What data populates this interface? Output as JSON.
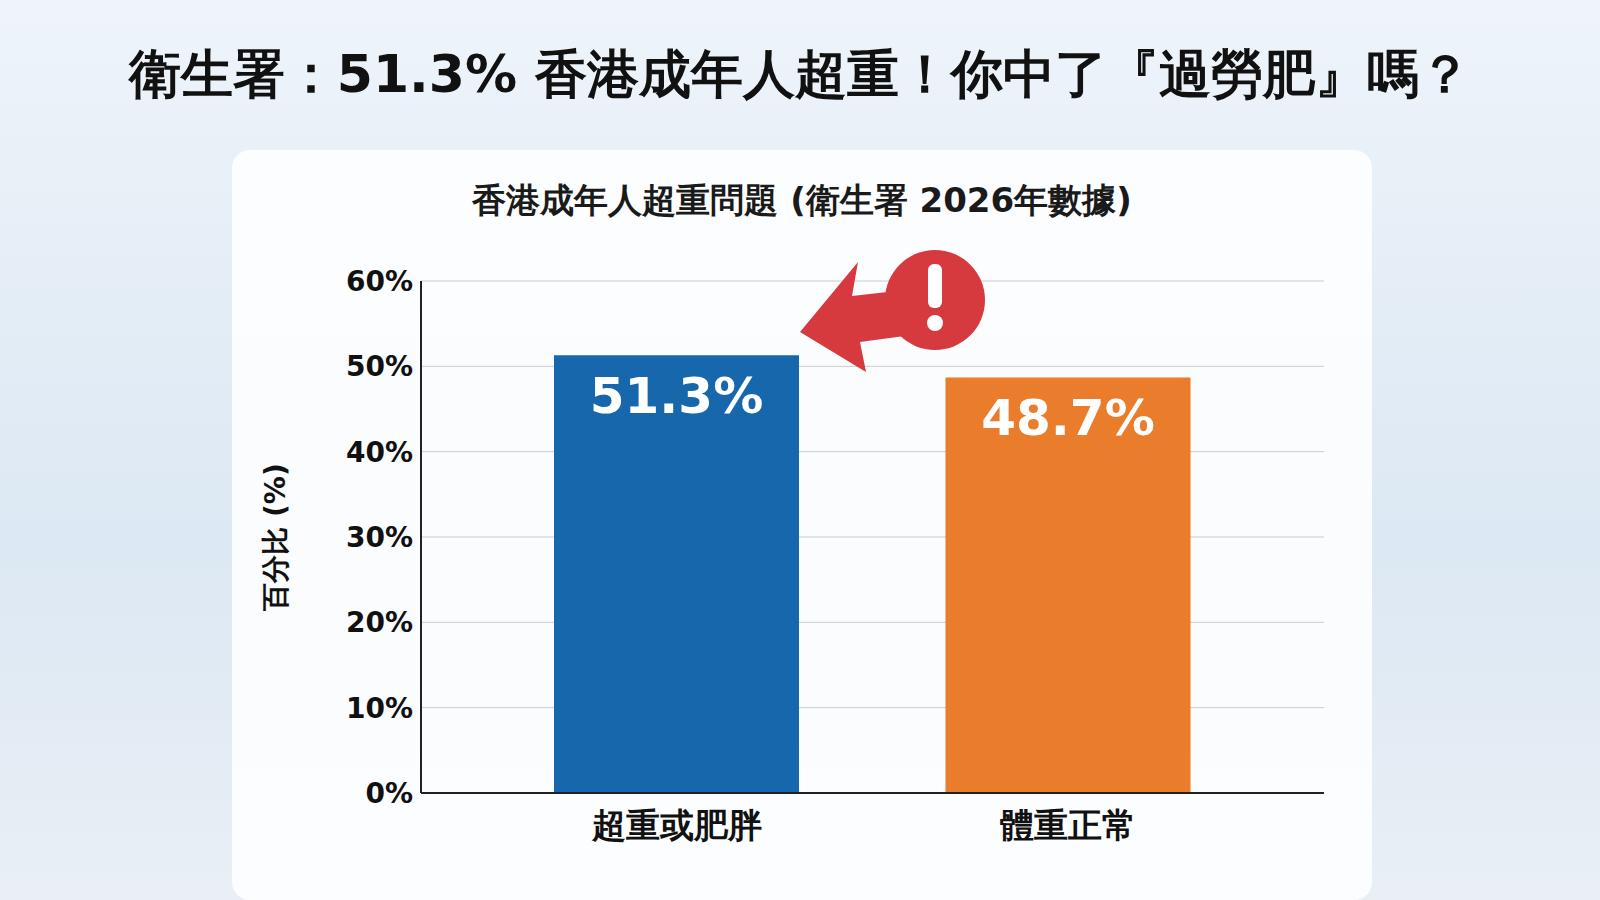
{
  "chart_data": {
    "type": "bar",
    "title": "衛生署：51.3% 香港成年人超重！你中了『過勞肥』嗎？",
    "subtitle": "香港成年人超重問題 (衛生署 2026年數據)",
    "y_label": "百分比 (%)",
    "categories": [
      "超重或肥胖",
      "體重正常"
    ],
    "values": [
      51.3,
      48.7
    ],
    "value_labels": [
      "51.3%",
      "48.7%"
    ],
    "colors": [
      "#1767ad",
      "#ea7d2c"
    ],
    "ylim": [
      0,
      60
    ],
    "yticks": [
      {
        "value": 0,
        "label": "0%"
      },
      {
        "value": 10,
        "label": "10%"
      },
      {
        "value": 20,
        "label": "20%"
      },
      {
        "value": 30,
        "label": "30%"
      },
      {
        "value": 40,
        "label": "40%"
      },
      {
        "value": 50,
        "label": "50%"
      },
      {
        "value": 60,
        "label": "60%"
      }
    ],
    "grid": true,
    "data_labels": true
  }
}
